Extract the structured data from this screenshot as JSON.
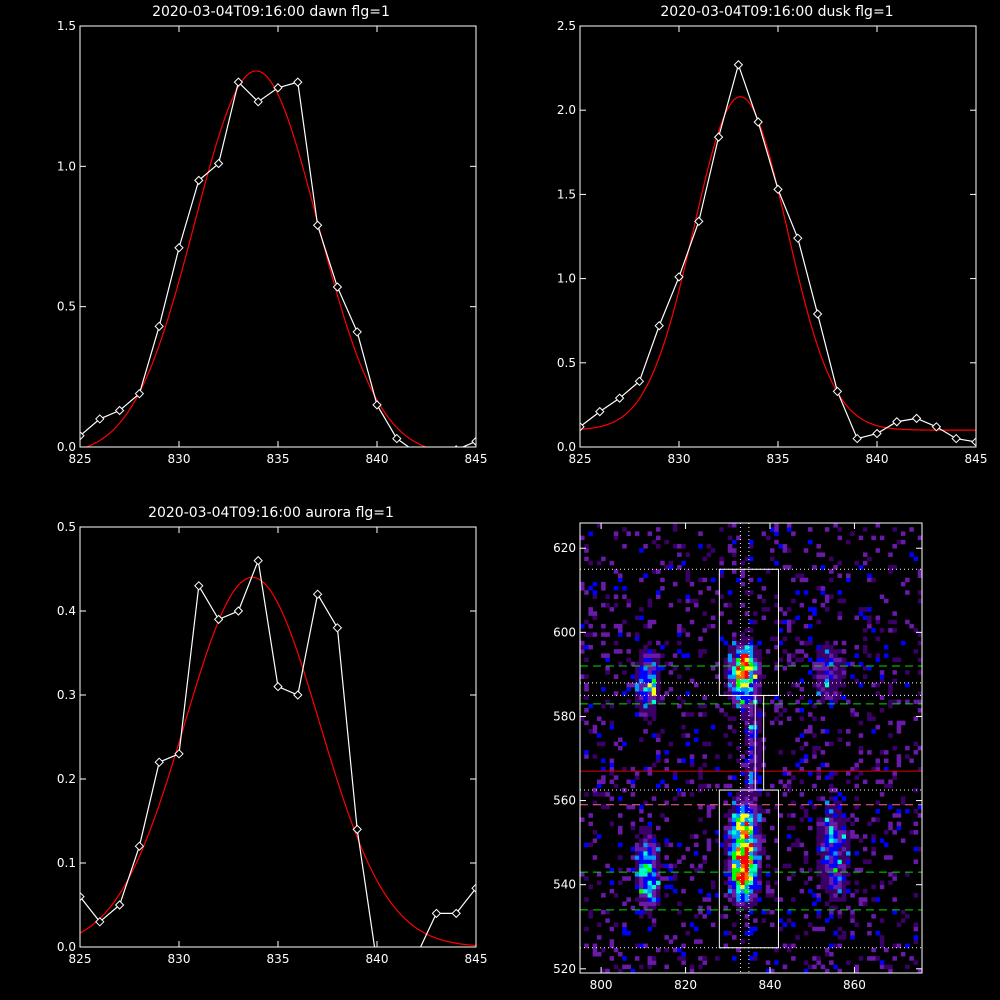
{
  "colors": {
    "background": "#000000",
    "axes": "#ffffff",
    "data_line": "#ffffff",
    "fit_line": "#ff0000",
    "green_guides": "#00dd00",
    "red_guide": "#dd0000",
    "pink_guide": "#ff6688"
  },
  "chart_data": [
    {
      "id": "dawn",
      "type": "line",
      "title": "2020-03-04T09:16:00 dawn flg=1",
      "xlim": [
        825,
        845
      ],
      "ylim": [
        0,
        1.5
      ],
      "xticks": [
        825,
        830,
        835,
        840,
        845
      ],
      "yticks": [
        0.0,
        0.5,
        1.0,
        1.5
      ],
      "xtick_labels": [
        "825",
        "830",
        "835",
        "840",
        "845"
      ],
      "ytick_labels": [
        "0.0",
        "0.5",
        "1.0",
        "1.5"
      ],
      "series": [
        {
          "role": "data",
          "marker": "diamond",
          "x": [
            825,
            826,
            827,
            828,
            829,
            830,
            831,
            832,
            833,
            834,
            835,
            836,
            837,
            838,
            839,
            840,
            841,
            842,
            843,
            844,
            845
          ],
          "y": [
            0.04,
            0.1,
            0.13,
            0.19,
            0.43,
            0.71,
            0.95,
            1.01,
            1.3,
            1.23,
            1.28,
            1.3,
            0.79,
            0.57,
            0.41,
            0.15,
            0.03,
            -0.02,
            -0.04,
            -0.01,
            0.02
          ]
        },
        {
          "role": "fit",
          "shape": "gaussian",
          "amplitude": 1.37,
          "center": 833.9,
          "sigma": 3.1,
          "offset": -0.03
        }
      ]
    },
    {
      "id": "dusk",
      "type": "line",
      "title": "2020-03-04T09:16:00 dusk flg=1",
      "xlim": [
        825,
        845
      ],
      "ylim": [
        0,
        2.5
      ],
      "xticks": [
        825,
        830,
        835,
        840,
        845
      ],
      "yticks": [
        0.0,
        0.5,
        1.0,
        1.5,
        2.0,
        2.5
      ],
      "xtick_labels": [
        "825",
        "830",
        "835",
        "840",
        "845"
      ],
      "ytick_labels": [
        "0.0",
        "0.5",
        "1.0",
        "1.5",
        "2.0",
        "2.5"
      ],
      "series": [
        {
          "role": "data",
          "marker": "diamond",
          "x": [
            825,
            826,
            827,
            828,
            829,
            830,
            831,
            832,
            833,
            834,
            835,
            836,
            837,
            838,
            839,
            840,
            841,
            842,
            843,
            844,
            845
          ],
          "y": [
            0.12,
            0.21,
            0.29,
            0.39,
            0.72,
            1.01,
            1.34,
            1.84,
            2.27,
            1.93,
            1.53,
            1.24,
            0.79,
            0.33,
            0.05,
            0.08,
            0.15,
            0.17,
            0.12,
            0.05,
            0.03
          ]
        },
        {
          "role": "fit",
          "shape": "gaussian",
          "amplitude": 1.98,
          "center": 833.1,
          "sigma": 2.35,
          "offset": 0.1
        }
      ]
    },
    {
      "id": "aurora",
      "type": "line",
      "title": "2020-03-04T09:16:00 aurora flg=1",
      "xlim": [
        825,
        845
      ],
      "ylim": [
        0,
        0.5
      ],
      "xticks": [
        825,
        830,
        835,
        840,
        845
      ],
      "yticks": [
        0.0,
        0.1,
        0.2,
        0.3,
        0.4,
        0.5
      ],
      "xtick_labels": [
        "825",
        "830",
        "835",
        "840",
        "845"
      ],
      "ytick_labels": [
        "0.0",
        "0.1",
        "0.2",
        "0.3",
        "0.4",
        "0.5"
      ],
      "series": [
        {
          "role": "data",
          "marker": "diamond",
          "x": [
            825,
            826,
            827,
            828,
            829,
            830,
            831,
            832,
            833,
            834,
            835,
            836,
            837,
            838,
            839,
            840,
            841,
            842,
            843,
            844,
            845
          ],
          "y": [
            0.06,
            0.03,
            0.05,
            0.12,
            0.22,
            0.23,
            0.43,
            0.39,
            0.4,
            0.46,
            0.31,
            0.3,
            0.42,
            0.38,
            0.14,
            -0.02,
            -0.01,
            -0.01,
            0.04,
            0.04,
            0.07
          ]
        },
        {
          "role": "fit",
          "shape": "gaussian",
          "amplitude": 0.44,
          "center": 833.7,
          "sigma": 3.4,
          "offset": 0
        }
      ]
    },
    {
      "id": "image",
      "type": "heatmap",
      "xlim": [
        795,
        876
      ],
      "ylim": [
        519,
        626
      ],
      "xticks": [
        800,
        820,
        840,
        860
      ],
      "yticks": [
        520,
        540,
        560,
        580,
        600,
        620
      ],
      "xtick_labels": [
        "800",
        "820",
        "840",
        "860"
      ],
      "ytick_labels": [
        "520",
        "540",
        "560",
        "580",
        "600",
        "620"
      ],
      "colormap": [
        "#000000",
        "#3a0066",
        "#6a1aa8",
        "#0000ff",
        "#0099ff",
        "#00ffcc",
        "#00ff00",
        "#ffff00",
        "#ff6600",
        "#ff0000"
      ],
      "bright_regions": [
        {
          "x": 833.8,
          "y": 590,
          "sx": 2.2,
          "sy": 4.5,
          "peak": 1.0
        },
        {
          "x": 833.8,
          "y": 543,
          "sx": 2.2,
          "sy": 4.5,
          "peak": 1.0
        },
        {
          "x": 833.8,
          "y": 553,
          "sx": 2.2,
          "sy": 5,
          "peak": 0.75
        },
        {
          "x": 811,
          "y": 588,
          "sx": 1.8,
          "sy": 5,
          "peak": 0.6
        },
        {
          "x": 811,
          "y": 543,
          "sx": 1.8,
          "sy": 6,
          "peak": 0.6
        },
        {
          "x": 836,
          "y": 572,
          "sx": 1.2,
          "sy": 8,
          "peak": 0.35
        },
        {
          "x": 854,
          "y": 590,
          "sx": 2.5,
          "sy": 5,
          "peak": 0.35
        },
        {
          "x": 855,
          "y": 548,
          "sx": 2.5,
          "sy": 8,
          "peak": 0.4
        }
      ],
      "boxes": [
        {
          "x0": 828,
          "x1": 842,
          "y0": 585,
          "y1": 615
        },
        {
          "x0": 828,
          "x1": 842,
          "y0": 525,
          "y1": 562.5
        }
      ],
      "vertical_dotted_x": [
        833,
        835
      ],
      "dotted_y": [
        615,
        588,
        585,
        562.5,
        525
      ],
      "green_dashed_y": [
        592,
        583,
        543,
        534
      ],
      "red_line_y": 567,
      "pink_dashed_y": 559
    }
  ]
}
